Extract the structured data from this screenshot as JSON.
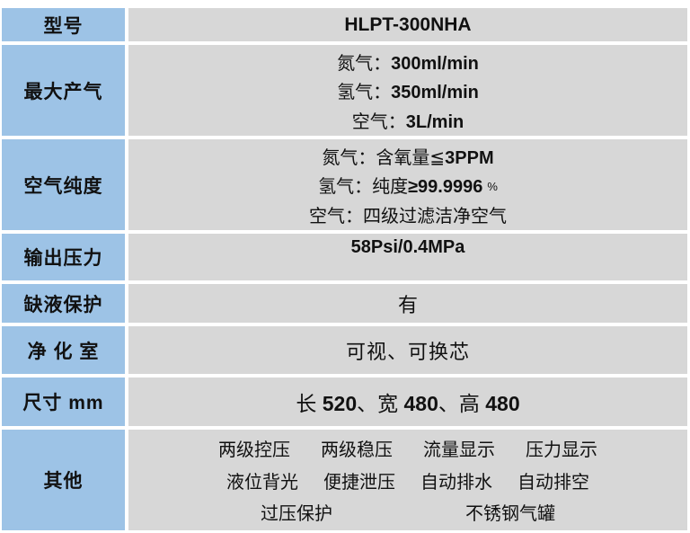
{
  "colors": {
    "label_bg": "#9DC3E6",
    "value_bg": "#D7D7D7",
    "grid_line": "#FFFFFF",
    "text": "#111111"
  },
  "table": {
    "rows": [
      {
        "label": "型号",
        "lines": [
          {
            "parts": [
              {
                "t": "HLPT-300NHA"
              }
            ]
          }
        ]
      },
      {
        "label": "最大产气",
        "lines": [
          {
            "parts": [
              {
                "t": "氮气："
              },
              {
                "t": "300ml/min"
              }
            ]
          },
          {
            "parts": [
              {
                "t": "氢气："
              },
              {
                "t": "350ml/min"
              }
            ]
          },
          {
            "parts": [
              {
                "t": "空气："
              },
              {
                "t": "3L/min"
              }
            ]
          }
        ]
      },
      {
        "label": "空气纯度",
        "lines": [
          {
            "parts": [
              {
                "t": "氮气：含氧量≦"
              },
              {
                "t": "3PPM"
              }
            ]
          },
          {
            "parts": [
              {
                "t": "氢气：纯度"
              },
              {
                "t": "≥99.9996"
              },
              {
                "t": "%"
              }
            ]
          },
          {
            "parts": [
              {
                "t": "空气：四级过滤洁净空气"
              }
            ]
          }
        ]
      },
      {
        "label": "输出压力",
        "lines": [
          {
            "parts": [
              {
                "t": "58Psi/0.4MPa"
              }
            ]
          }
        ]
      },
      {
        "label": "缺液保护",
        "lines": [
          {
            "parts": [
              {
                "t": "有"
              }
            ]
          }
        ]
      },
      {
        "label": "净 化 室",
        "lines": [
          {
            "parts": [
              {
                "t": "可视、可换芯"
              }
            ]
          }
        ]
      },
      {
        "label": "尺寸 mm",
        "lines": [
          {
            "parts": [
              {
                "t": "长 "
              },
              {
                "t": "520"
              },
              {
                "t": "、宽 "
              },
              {
                "t": "480"
              },
              {
                "t": "、高 "
              },
              {
                "t": "480"
              }
            ]
          }
        ]
      },
      {
        "label": "其他",
        "feature_lines": [
          [
            "两级控压",
            "两级稳压",
            "流量显示",
            "压力显示"
          ],
          [
            "液位背光",
            "便捷泄压",
            "自动排水",
            "自动排空"
          ],
          [
            "过压保护",
            "不锈钢气罐"
          ]
        ]
      }
    ]
  }
}
